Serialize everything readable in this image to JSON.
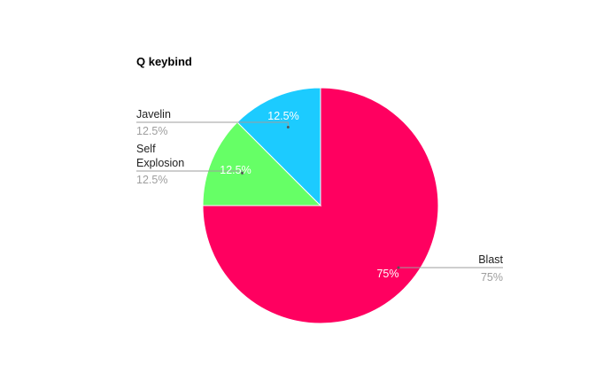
{
  "chart_data": {
    "type": "pie",
    "title": "Q keybind",
    "categories": [
      "Blast",
      "Self Explosion",
      "Javelin"
    ],
    "values": [
      75,
      12.5,
      12.5
    ],
    "value_labels": [
      "75%",
      "12.5%",
      "12.5%"
    ],
    "colors": [
      "#ff0060",
      "#66ff66",
      "#1ccbff"
    ],
    "legend": "none",
    "label_placement": "outside-with-leader-lines"
  }
}
